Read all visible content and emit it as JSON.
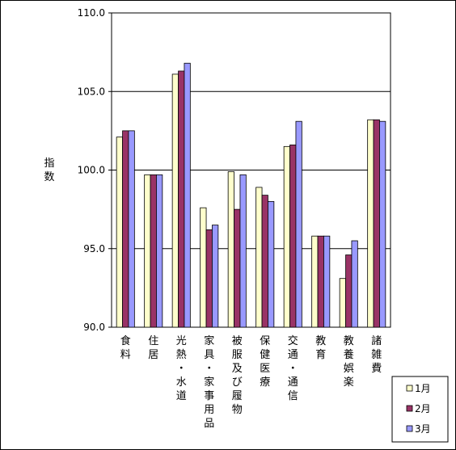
{
  "chart_data": {
    "type": "bar",
    "ylabel": "指数",
    "ylim": [
      90,
      110
    ],
    "yticks": [
      "90.0",
      "95.0",
      "100.0",
      "105.0",
      "110.0"
    ],
    "categories": [
      "食料",
      "住居",
      "光熱・水道",
      "家具・家事用品",
      "被服及び履物",
      "保健医療",
      "交通・通信",
      "教育",
      "教養娯楽",
      "諸雑費"
    ],
    "series": [
      {
        "name": "1月",
        "color": "#FFFFCC",
        "values": [
          102.1,
          99.7,
          106.1,
          97.6,
          99.9,
          98.9,
          101.5,
          95.8,
          93.1,
          103.2
        ]
      },
      {
        "name": "2月",
        "color": "#993366",
        "values": [
          102.5,
          99.7,
          106.3,
          96.2,
          97.5,
          98.4,
          101.6,
          95.8,
          94.6,
          103.2
        ]
      },
      {
        "name": "3月",
        "color": "#9999FF",
        "values": [
          102.5,
          99.7,
          106.8,
          96.5,
          99.7,
          98.0,
          103.1,
          95.8,
          95.5,
          103.1
        ]
      }
    ],
    "grid": true,
    "legend": "bottom-right"
  }
}
